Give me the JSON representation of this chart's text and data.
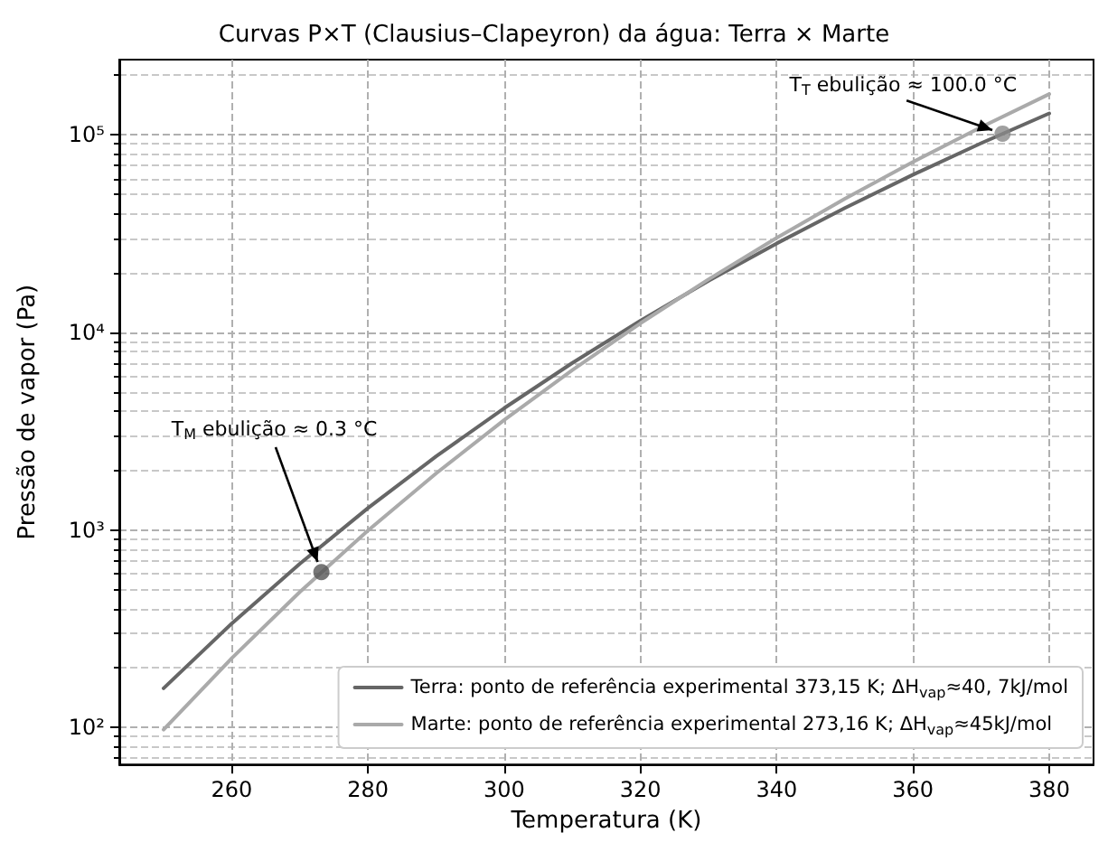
{
  "chart_data": {
    "type": "line",
    "title": "Curvas P×T (Clausius–Clapeyron) da água: Terra × Marte",
    "xlabel": "Temperatura (K)",
    "ylabel": "Pressão de vapor (Pa)",
    "log": "y",
    "grid": true,
    "legend": "bottom right",
    "marker": "none",
    "line_style": "solid",
    "xlim": [
      243.5,
      386.5
    ],
    "xticks": [
      260,
      280,
      300,
      320,
      340,
      360,
      380
    ],
    "ylim": [
      65,
      240000
    ],
    "yticks": [
      {
        "value": 100,
        "label": "10²"
      },
      {
        "value": 1000,
        "label": "10³"
      },
      {
        "value": 10000,
        "label": "10⁴"
      },
      {
        "value": 100000,
        "label": "10⁵"
      }
    ],
    "x": [
      250,
      260,
      270,
      280,
      290,
      300,
      310,
      320,
      330,
      340,
      350,
      360,
      370,
      380
    ],
    "series": [
      {
        "name": "Terra: ponto de referência experimental 373,15 K; ΔH$_{vap}$≈40, 7kJ/mol",
        "color": "#666666",
        "values": [
          158,
          336,
          674,
          1290,
          2356,
          4134,
          7000,
          11467,
          18226,
          28200,
          42550,
          62750,
          90620,
          128300
        ]
      },
      {
        "name": "Marte: ponto de referência experimental 273,16 K; ΔH$_{vap}$≈45kJ/mol",
        "color": "#aaaaaa",
        "values": [
          97.6,
          224,
          485,
          992,
          1933,
          3601,
          6444,
          11120,
          18565,
          30070,
          47400,
          72820,
          109360,
          160700
        ]
      },
      {
        "type": "scatter",
        "marker": "circle",
        "color": "#888888",
        "x": [
          373.15
        ],
        "values": [
          101325
        ]
      },
      {
        "type": "scatter",
        "marker": "circle",
        "color": "#555555",
        "x": [
          273.16
        ],
        "values": [
          611.7
        ]
      }
    ],
    "annotations": [
      {
        "text": "T$_{T}$ ebulição ≈ 100.0 °C",
        "x": 373.15,
        "y": 101325
      },
      {
        "text": "T$_{M}$ ebulição ≈ 0.3 °C",
        "x": 273.16,
        "y": 611.7
      }
    ]
  }
}
